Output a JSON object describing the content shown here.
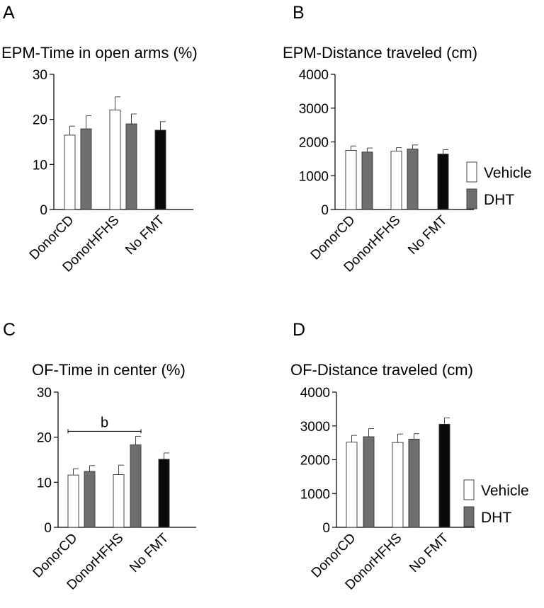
{
  "chart_data": [
    {
      "panel": "A",
      "type": "bar",
      "title": "EPM-Time in open arms (%)",
      "ylim": [
        0,
        30
      ],
      "yticks": [
        0,
        10,
        20,
        30
      ],
      "categories": [
        "DonorCD",
        "DonorHFHS",
        "No FMT"
      ],
      "bars": [
        {
          "category": "DonorCD",
          "group": "Vehicle",
          "fill": "white",
          "value": 16.5,
          "error": 2.0
        },
        {
          "category": "DonorCD",
          "group": "DHT",
          "fill": "gray",
          "value": 17.9,
          "error": 2.9
        },
        {
          "category": "DonorHFHS",
          "group": "Vehicle",
          "fill": "white",
          "value": 22.1,
          "error": 2.9
        },
        {
          "category": "DonorHFHS",
          "group": "DHT",
          "fill": "gray",
          "value": 19.0,
          "error": 2.2
        },
        {
          "category": "No FMT",
          "group": "",
          "fill": "black",
          "value": 17.6,
          "error": 1.9
        }
      ],
      "legend": []
    },
    {
      "panel": "B",
      "type": "bar",
      "title": "EPM-Distance traveled (cm)",
      "ylim": [
        0,
        4000
      ],
      "yticks": [
        0,
        1000,
        2000,
        3000,
        4000
      ],
      "categories": [
        "DonorCD",
        "DonorHFHS",
        "No FMT"
      ],
      "bars": [
        {
          "category": "DonorCD",
          "group": "Vehicle",
          "fill": "white",
          "value": 1750,
          "error": 130
        },
        {
          "category": "DonorCD",
          "group": "DHT",
          "fill": "gray",
          "value": 1700,
          "error": 120
        },
        {
          "category": "DonorHFHS",
          "group": "Vehicle",
          "fill": "white",
          "value": 1730,
          "error": 100
        },
        {
          "category": "DonorHFHS",
          "group": "DHT",
          "fill": "gray",
          "value": 1790,
          "error": 120
        },
        {
          "category": "No FMT",
          "group": "",
          "fill": "black",
          "value": 1640,
          "error": 130
        }
      ],
      "legend": [
        {
          "name": "Vehicle",
          "fill": "white"
        },
        {
          "name": "DHT",
          "fill": "gray"
        }
      ]
    },
    {
      "panel": "C",
      "type": "bar",
      "title": "OF-Time in center (%)",
      "ylim": [
        0,
        30
      ],
      "yticks": [
        0,
        10,
        20,
        30
      ],
      "categories": [
        "DonorCD",
        "DonorHFHS",
        "No FMT"
      ],
      "bars": [
        {
          "category": "DonorCD",
          "group": "Vehicle",
          "fill": "white",
          "value": 11.6,
          "error": 1.4
        },
        {
          "category": "DonorCD",
          "group": "DHT",
          "fill": "gray",
          "value": 12.4,
          "error": 1.3
        },
        {
          "category": "DonorHFHS",
          "group": "Vehicle",
          "fill": "white",
          "value": 11.7,
          "error": 2.1
        },
        {
          "category": "DonorHFHS",
          "group": "DHT",
          "fill": "gray",
          "value": 18.3,
          "error": 1.9
        },
        {
          "category": "No FMT",
          "group": "",
          "fill": "black",
          "value": 15.1,
          "error": 1.4
        }
      ],
      "annotation": {
        "label": "b",
        "from": "DonorCD",
        "to": "DonorHFHS",
        "y": 21.3
      },
      "legend": []
    },
    {
      "panel": "D",
      "type": "bar",
      "title": "OF-Distance traveled (cm)",
      "ylim": [
        0,
        4000
      ],
      "yticks": [
        0,
        1000,
        2000,
        3000,
        4000
      ],
      "categories": [
        "DonorCD",
        "DonorHFHS",
        "No FMT"
      ],
      "bars": [
        {
          "category": "DonorCD",
          "group": "Vehicle",
          "fill": "white",
          "value": 2520,
          "error": 200
        },
        {
          "category": "DonorCD",
          "group": "DHT",
          "fill": "gray",
          "value": 2680,
          "error": 240
        },
        {
          "category": "DonorHFHS",
          "group": "Vehicle",
          "fill": "white",
          "value": 2510,
          "error": 250
        },
        {
          "category": "DonorHFHS",
          "group": "DHT",
          "fill": "gray",
          "value": 2610,
          "error": 160
        },
        {
          "category": "No FMT",
          "group": "",
          "fill": "black",
          "value": 3050,
          "error": 190
        }
      ],
      "legend": [
        {
          "name": "Vehicle",
          "fill": "white"
        },
        {
          "name": "DHT",
          "fill": "gray"
        }
      ]
    }
  ],
  "colors": {
    "white": "#ffffff",
    "gray": "#6e6e6e",
    "black": "#0a0a0a",
    "axis": "#000000"
  }
}
